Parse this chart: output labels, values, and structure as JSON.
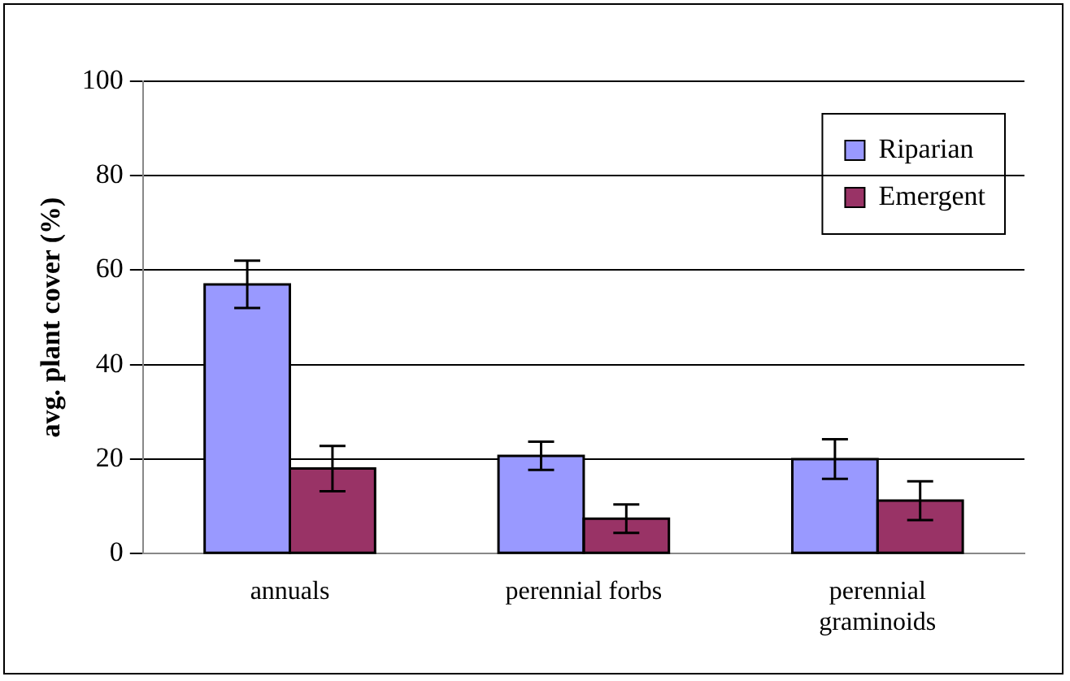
{
  "chart_data": {
    "type": "bar",
    "ylabel": "avg. plant cover (%)",
    "categories": [
      "annuals",
      "perennial forbs",
      "perennial graminoids"
    ],
    "series": [
      {
        "name": "Riparian",
        "color": "#9999ff",
        "values": [
          57,
          20.7,
          20
        ],
        "errors": [
          5,
          3,
          4.2
        ]
      },
      {
        "name": "Emergent",
        "color": "#993366",
        "values": [
          18,
          7.4,
          11.2
        ],
        "errors": [
          4.8,
          3,
          4.1
        ]
      }
    ],
    "ylim": [
      0,
      100
    ],
    "yticks": [
      0,
      20,
      40,
      60,
      80,
      100
    ],
    "grid": "y",
    "legend": "top right"
  }
}
